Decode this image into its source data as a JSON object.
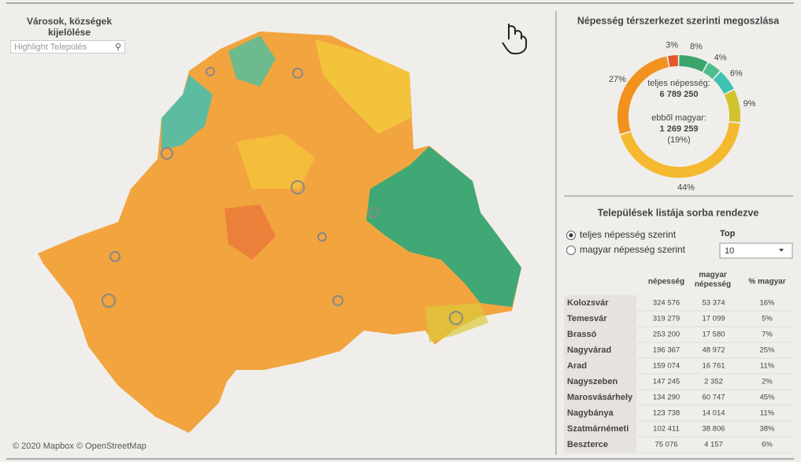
{
  "map": {
    "title": "Városok, községek kijelölése",
    "search_placeholder": "Highlight Település",
    "attribution": "© 2020 Mapbox © OpenStreetMap"
  },
  "chart_data": {
    "type": "pie",
    "title": "Népesség térszerkezet szerinti megoszlása",
    "values": [
      3,
      8,
      4,
      6,
      9,
      44,
      27
    ],
    "value_labels": [
      "3%",
      "8%",
      "4%",
      "6%",
      "9%",
      "44%",
      "27%"
    ],
    "colors": [
      "#e8552b",
      "#3aa56b",
      "#4fbe8c",
      "#3ec3b2",
      "#d2c22c",
      "#f5b92f",
      "#f3911f"
    ],
    "center": [
      "teljes népesség:",
      "6 789 250",
      "ebből magyar:",
      "1 269 259",
      "(19%)"
    ]
  },
  "list": {
    "title": "Települések listája sorba rendezve",
    "sort_options": [
      "teljes népesség szerint",
      "magyar népesség szerint"
    ],
    "top_label": "Top",
    "top_value": "10",
    "columns": [
      "népesség",
      "magyar népesség",
      "% magyar"
    ],
    "rows": [
      [
        "Kolozsvár",
        "324 576",
        "53 374",
        "16%"
      ],
      [
        "Temesvár",
        "319 279",
        "17 099",
        "5%"
      ],
      [
        "Brassó",
        "253 200",
        "17 580",
        "7%"
      ],
      [
        "Nagyvárad",
        "196 367",
        "48 972",
        "25%"
      ],
      [
        "Arad",
        "159 074",
        "16 761",
        "11%"
      ],
      [
        "Nagyszeben",
        "147 245",
        "2 352",
        "2%"
      ],
      [
        "Marosvásárhely",
        "134 290",
        "60 747",
        "45%"
      ],
      [
        "Nagybánya",
        "123 738",
        "14 014",
        "11%"
      ],
      [
        "Szatmárnémeti",
        "102 411",
        "38 806",
        "38%"
      ],
      [
        "Beszterce",
        "75 076",
        "4 157",
        "6%"
      ]
    ]
  }
}
